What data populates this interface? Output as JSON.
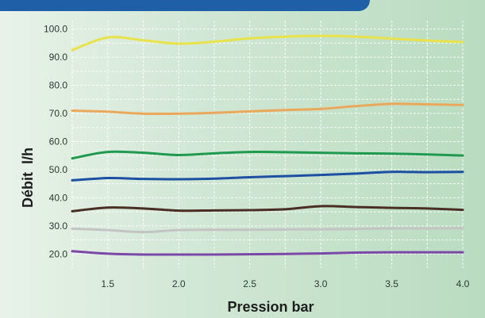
{
  "chart_data": {
    "type": "line",
    "title": "",
    "xlabel": "Pression bar",
    "ylabel": "Débit  l/h",
    "xlim": [
      1.25,
      4.0
    ],
    "ylim": [
      15,
      103
    ],
    "xticks": [
      "1.5",
      "2.0",
      "2.5",
      "3.0",
      "3.5",
      "4.0"
    ],
    "xtick_values": [
      1.5,
      2.0,
      2.5,
      3.0,
      3.5,
      4.0
    ],
    "yticks": [
      "20.0",
      "30.0",
      "40.0",
      "50.0",
      "60.0",
      "70.0",
      "80.0",
      "90.0",
      "100.0"
    ],
    "ytick_values": [
      20,
      30,
      40,
      50,
      60,
      70,
      80,
      90,
      100
    ],
    "grid": true,
    "x": [
      1.25,
      1.5,
      1.75,
      2.0,
      2.25,
      2.5,
      2.75,
      3.0,
      3.25,
      3.5,
      3.75,
      4.0
    ],
    "series": [
      {
        "color": "#e9e24a",
        "values": [
          92.5,
          97.0,
          96.0,
          94.8,
          95.5,
          96.7,
          97.3,
          97.6,
          97.3,
          96.6,
          95.9,
          95.4
        ]
      },
      {
        "color": "#eba85a",
        "values": [
          71.0,
          70.6,
          69.9,
          69.9,
          70.2,
          70.7,
          71.2,
          71.6,
          72.6,
          73.4,
          73.2,
          73.0
        ]
      },
      {
        "color": "#1f9a4e",
        "values": [
          54.0,
          56.3,
          56.0,
          55.2,
          55.8,
          56.3,
          56.2,
          56.0,
          55.8,
          55.7,
          55.4,
          55.0
        ]
      },
      {
        "color": "#1d4fa3",
        "values": [
          46.2,
          47.0,
          46.7,
          46.6,
          46.8,
          47.3,
          47.7,
          48.1,
          48.6,
          49.2,
          49.1,
          49.2
        ]
      },
      {
        "color": "#4a2e24",
        "values": [
          35.2,
          36.5,
          36.2,
          35.4,
          35.5,
          35.6,
          35.9,
          37.0,
          36.7,
          36.4,
          36.2,
          35.7
        ]
      },
      {
        "color": "#c4c4c4",
        "values": [
          29.0,
          28.5,
          27.8,
          28.5,
          28.6,
          28.6,
          28.7,
          28.8,
          28.9,
          29.1,
          29.1,
          29.2
        ]
      },
      {
        "color": "#7b48a8",
        "values": [
          21.0,
          20.1,
          19.8,
          19.8,
          19.8,
          19.9,
          20.0,
          20.2,
          20.5,
          20.6,
          20.6,
          20.6
        ]
      }
    ]
  }
}
